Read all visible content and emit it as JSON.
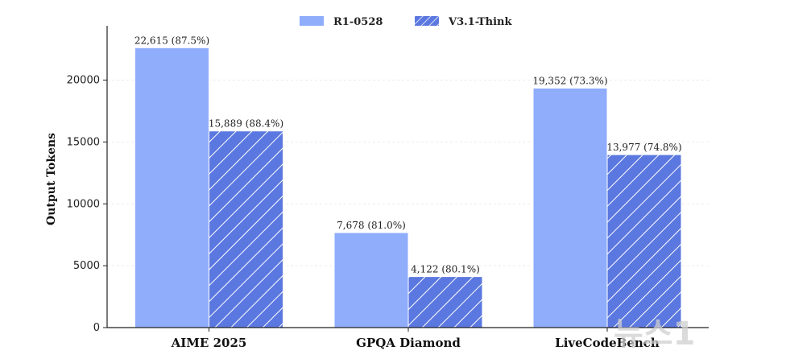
{
  "chart_data": {
    "type": "bar",
    "title": "",
    "xlabel": "",
    "ylabel": "Output Tokens",
    "ylim": [
      0,
      24000
    ],
    "yticks": [
      0,
      5000,
      10000,
      15000,
      20000
    ],
    "categories": [
      "AIME 2025",
      "GPQA Diamond",
      "LiveCodeBench"
    ],
    "legend_position": "top-center",
    "series": [
      {
        "name": "R1-0528",
        "color": "#8fadfb",
        "pattern": "solid",
        "values": [
          22615,
          7678,
          19352
        ],
        "labels": [
          "22,615 (87.5%)",
          "7,678 (81.0%)",
          "19,352 (73.3%)"
        ]
      },
      {
        "name": "V3.1-Think",
        "color": "#5b78e0",
        "pattern": "hatched",
        "values": [
          15889,
          4122,
          13977
        ],
        "labels": [
          "15,889 (88.4%)",
          "4,122 (80.1%)",
          "13,977 (74.8%)"
        ]
      }
    ]
  },
  "watermark": "뉴스1"
}
